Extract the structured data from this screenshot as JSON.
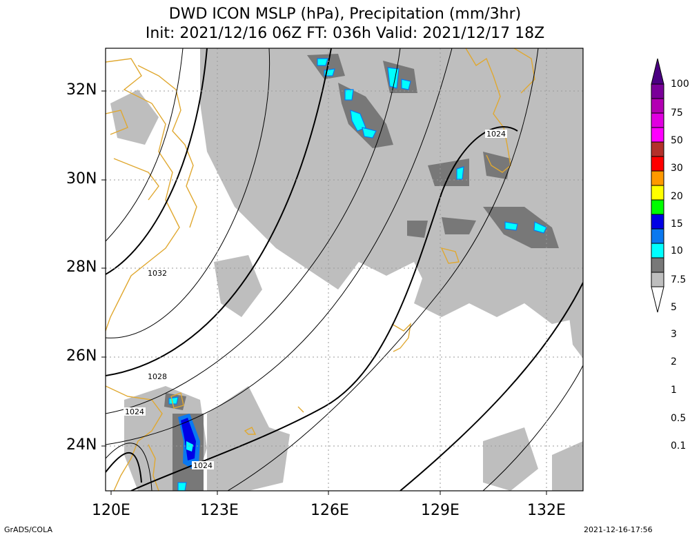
{
  "title_line1": "DWD ICON MSLP (hPa), Precipitation (mm/3hr)",
  "title_line2": "Init: 2021/12/16 06Z  FT: 036h  Valid: 2021/12/17 18Z",
  "lat_labels": [
    "32N",
    "30N",
    "28N",
    "26N",
    "24N"
  ],
  "lon_labels": [
    "120E",
    "123E",
    "126E",
    "129E",
    "132E"
  ],
  "isobar_labels": [
    "1024",
    "1032",
    "1028",
    "1024",
    "1024"
  ],
  "colorbar": {
    "levels": [
      "100",
      "75",
      "50",
      "30",
      "20",
      "15",
      "10",
      "7.5",
      "5",
      "3",
      "2",
      "1",
      "0.5",
      "0.1"
    ],
    "colors": [
      "#7a0099",
      "#b300b3",
      "#ff00ff",
      "#b3302a",
      "#ff0000",
      "#ff9900",
      "#ffff00",
      "#00ff00",
      "#0000e6",
      "#0a78f0",
      "#00ffff",
      "#787878",
      "#bebebe",
      "#ffffff"
    ]
  },
  "footer_left": "GrADS/COLA",
  "footer_right": "2021-12-16-17:56",
  "colors": {
    "coast": "#e0a830",
    "rain_light": "#bebebe",
    "rain_mid": "#787878"
  }
}
